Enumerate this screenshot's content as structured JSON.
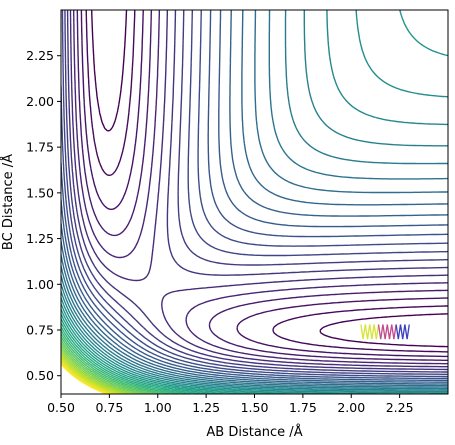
{
  "chart_data": {
    "type": "contour",
    "title": "",
    "xlabel": "AB Distance /Å",
    "ylabel": "BC Distance /Å",
    "xlim": [
      0.5,
      2.5
    ],
    "ylim": [
      0.4,
      2.5
    ],
    "x_ticks": [
      "0.50",
      "0.75",
      "1.00",
      "1.25",
      "1.50",
      "1.75",
      "2.00",
      "2.25"
    ],
    "y_ticks": [
      "0.50",
      "0.75",
      "1.00",
      "1.25",
      "1.50",
      "1.75",
      "2.00",
      "2.25"
    ],
    "x_tick_values": [
      0.5,
      0.75,
      1.0,
      1.25,
      1.5,
      1.75,
      2.0,
      2.25
    ],
    "y_tick_values": [
      0.5,
      0.75,
      1.0,
      1.25,
      1.5,
      1.75,
      2.0,
      2.25
    ],
    "colormap": "viridis",
    "grid": false,
    "legend": "none",
    "trajectory": {
      "description_visible": "short oscillating path",
      "x_range": [
        2.05,
        2.3
      ],
      "y_range": [
        0.7,
        0.78
      ],
      "colors": [
        "#d6e43a",
        "#c24b8a",
        "#3a3fbf"
      ]
    }
  }
}
